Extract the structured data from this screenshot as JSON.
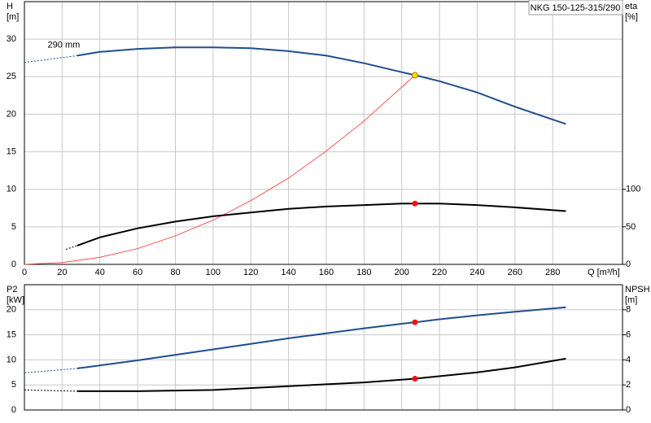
{
  "chart_data": [
    {
      "type": "line",
      "title": "NKG 150-125-315/290",
      "y_label": "H",
      "y_unit": "[m]",
      "y2_label": "eta",
      "y2_unit": "[%]",
      "x_label": "Q [m³/h]",
      "annotations": [
        {
          "text": "290 mm",
          "x": 8,
          "y": 29.2
        }
      ],
      "xlim": [
        0,
        317
      ],
      "xticks": [
        0,
        20,
        40,
        60,
        80,
        100,
        120,
        140,
        160,
        180,
        200,
        220,
        240,
        260,
        280
      ],
      "xtick_labels": true,
      "ylim": [
        0,
        35
      ],
      "yticks": [
        0,
        5,
        10,
        15,
        20,
        25,
        30
      ],
      "y2lim": [
        0,
        350
      ],
      "y2ticks": [
        0,
        50,
        100
      ],
      "grid": true,
      "series": [
        {
          "color": "#1f4e8c",
          "line_style": "dashed",
          "x": [
            0,
            28
          ],
          "values": [
            26.9,
            27.8
          ]
        },
        {
          "color": "#1f4e8c",
          "line_style": "solid",
          "x": [
            28,
            40,
            60,
            80,
            90,
            100,
            120,
            140,
            160,
            180,
            200,
            207,
            220,
            240,
            260,
            280,
            287
          ],
          "values": [
            27.8,
            28.3,
            28.7,
            28.9,
            28.9,
            28.9,
            28.8,
            28.4,
            27.8,
            26.8,
            25.6,
            25.2,
            24.4,
            22.9,
            21.0,
            19.3,
            18.7
          ]
        },
        {
          "color": "#ff3333",
          "line_style": "thin",
          "x": [
            0,
            20,
            40,
            60,
            80,
            100,
            120,
            140,
            160,
            180,
            207
          ],
          "values": [
            0,
            0.24,
            0.94,
            2.1,
            3.8,
            5.9,
            8.5,
            11.5,
            15.1,
            19.1,
            25.2
          ]
        },
        {
          "color": "#000000",
          "line_style": "dashed",
          "axis": "y2",
          "x": [
            22,
            28
          ],
          "values": [
            20,
            25
          ]
        },
        {
          "color": "#000000",
          "line_style": "solid",
          "axis": "y2",
          "x": [
            28,
            40,
            60,
            80,
            100,
            120,
            140,
            160,
            180,
            200,
            207,
            220,
            240,
            260,
            287
          ],
          "values": [
            25,
            36,
            48,
            57,
            64,
            69,
            74,
            77,
            79,
            81,
            81,
            81,
            79,
            76,
            71
          ]
        }
      ],
      "markers": [
        {
          "x": 207,
          "value": 25.2,
          "color": "#ffdd00"
        },
        {
          "x": 207,
          "value": 81,
          "axis": "y2",
          "color": "#ee1111"
        }
      ]
    },
    {
      "type": "line",
      "y_label": "P2",
      "y_unit": "[kW]",
      "y2_label": "NPSH",
      "y2_unit": "[m]",
      "xlim": [
        0,
        317
      ],
      "xticks": [
        0,
        20,
        40,
        60,
        80,
        100,
        120,
        140,
        160,
        180,
        200,
        220,
        240,
        260,
        280
      ],
      "xtick_labels": false,
      "ylim": [
        0,
        25
      ],
      "yticks": [
        0,
        5,
        10,
        15,
        20
      ],
      "y2lim": [
        0,
        10
      ],
      "y2ticks": [
        0,
        2,
        4,
        6,
        8
      ],
      "grid": true,
      "series": [
        {
          "color": "#1f4e8c",
          "line_style": "dashed",
          "x": [
            0,
            28
          ],
          "values": [
            7.4,
            8.3
          ]
        },
        {
          "color": "#1f4e8c",
          "line_style": "solid",
          "x": [
            28,
            40,
            60,
            80,
            100,
            120,
            140,
            160,
            180,
            200,
            207,
            220,
            240,
            260,
            287
          ],
          "values": [
            8.3,
            8.9,
            9.9,
            11.0,
            12.1,
            13.2,
            14.3,
            15.3,
            16.3,
            17.2,
            17.5,
            18.1,
            18.9,
            19.6,
            20.5
          ]
        },
        {
          "color": "#000000",
          "line_style": "dashed",
          "axis": "y2",
          "x": [
            0,
            28
          ],
          "values": [
            1.6,
            1.5
          ]
        },
        {
          "color": "#000000",
          "line_style": "solid",
          "axis": "y2",
          "x": [
            28,
            60,
            100,
            140,
            180,
            207,
            240,
            260,
            287
          ],
          "values": [
            1.5,
            1.5,
            1.6,
            1.9,
            2.2,
            2.5,
            3.0,
            3.4,
            4.1
          ]
        }
      ],
      "markers": [
        {
          "x": 207,
          "value": 17.5,
          "color": "#ee1111"
        },
        {
          "x": 207,
          "value": 2.5,
          "axis": "y2",
          "color": "#ee1111"
        }
      ]
    }
  ]
}
